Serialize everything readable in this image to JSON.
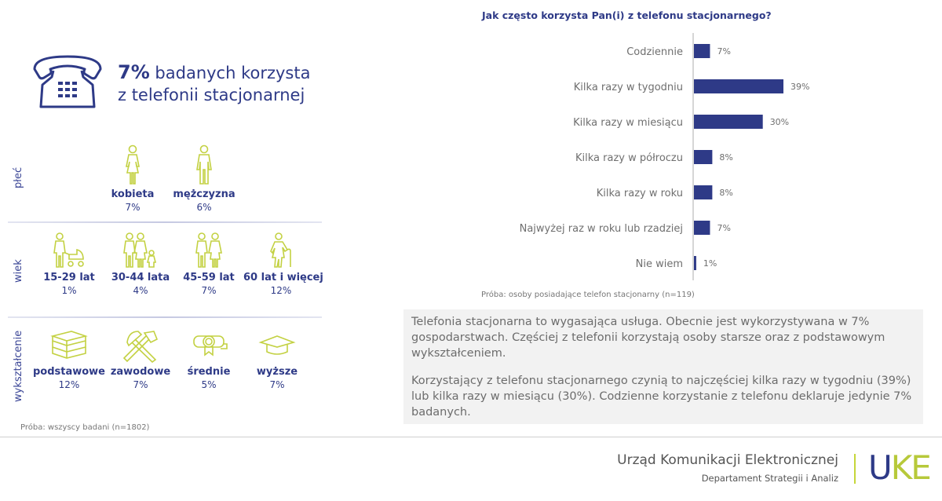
{
  "headline": {
    "percent": "7%",
    "text_line1": " badanych korzysta",
    "text_line2": "z telefonii stacjonarnej",
    "icon": "landline-phone-icon"
  },
  "demographics": {
    "sections": [
      {
        "label": "płeć",
        "items": [
          {
            "name": "kobieta",
            "value": "7%",
            "icon": "woman-icon"
          },
          {
            "name": "mężczyzna",
            "value": "6%",
            "icon": "man-icon"
          }
        ]
      },
      {
        "label": "wiek",
        "items": [
          {
            "name": "15-29 lat",
            "value": "1%",
            "icon": "parent-with-stroller-icon"
          },
          {
            "name": "30-44 lata",
            "value": "4%",
            "icon": "family-icon"
          },
          {
            "name": "45-59 lat",
            "value": "7%",
            "icon": "couple-icon"
          },
          {
            "name": "60 lat i więcej",
            "value": "12%",
            "icon": "elderly-woman-with-cane-icon"
          }
        ]
      },
      {
        "label": "wykształcenie",
        "items": [
          {
            "name": "podstawowe",
            "value": "12%",
            "icon": "books-icon"
          },
          {
            "name": "zawodowe",
            "value": "7%",
            "icon": "hammer-pickaxe-icon"
          },
          {
            "name": "średnie",
            "value": "5%",
            "icon": "diploma-icon"
          },
          {
            "name": "wyższe",
            "value": "7%",
            "icon": "graduation-cap-icon"
          }
        ]
      }
    ],
    "sample_note": "Próba: wszyscy badani (n=1802)"
  },
  "chart_data": {
    "type": "bar",
    "orientation": "horizontal",
    "title": "Jak często korzysta Pan(i) z telefonu stacjonarnego?",
    "categories": [
      "Codziennie",
      "Kilka razy w tygodniu",
      "Kilka razy w miesiącu",
      "Kilka razy w półroczu",
      "Kilka razy w roku",
      "Najwyżej raz w roku lub rzadziej",
      "Nie wiem"
    ],
    "values": [
      7,
      39,
      30,
      8,
      8,
      7,
      1
    ],
    "value_labels": [
      "7%",
      "39%",
      "30%",
      "8%",
      "8%",
      "7%",
      "1%"
    ],
    "unit": "%",
    "xlabel": "",
    "ylabel": "",
    "xlim": [
      0,
      45
    ],
    "grid": false,
    "legend": "none",
    "bar_color": "#2e3a87",
    "sample_note": "Próba: osoby posiadające telefon stacjonarny (n=119)"
  },
  "summary": {
    "paragraph1": "Telefonia stacjonarna to wygasająca usługa. Obecnie jest wykorzystywana w 7% gospodarstwach. Częściej z telefonii korzystają osoby starsze oraz z podstawowym wykształceniem.",
    "paragraph2": "Korzystający z telefonu stacjonarnego czynią to najczęściej kilka razy w tygodniu (39%) lub kilka razy w miesiącu (30%). Codzienne korzystanie z telefonu deklaruje jedynie 7% badanych."
  },
  "footer": {
    "org_name": "Urząd Komunikacji Elektronicznej",
    "department": "Departament Strategii i Analiz",
    "logo_u": "U",
    "logo_ke": "KE"
  },
  "colors": {
    "primary": "#2e3a87",
    "accent": "#b7c93a",
    "text_gray": "#6c6c6c",
    "box_bg": "#f2f2f2"
  }
}
